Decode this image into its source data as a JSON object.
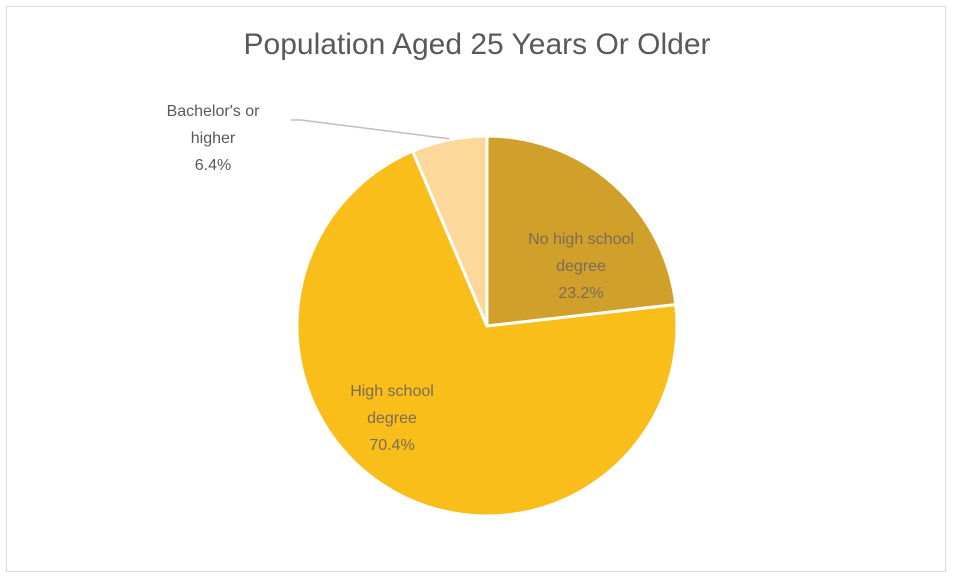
{
  "chart_data": {
    "type": "pie",
    "title": "Population Aged 25 Years Or Older",
    "slices": [
      {
        "label_lines": [
          "No high school",
          "degree"
        ],
        "value_label": "23.2%",
        "value": 23.2,
        "color": "#d0a02a"
      },
      {
        "label_lines": [
          "High school",
          "degree"
        ],
        "value_label": "70.4%",
        "value": 70.4,
        "color": "#f9be19"
      },
      {
        "label_lines": [
          "Bachelor's or",
          "higher"
        ],
        "value_label": "6.4%",
        "value": 6.4,
        "color": "#fdd89b"
      }
    ],
    "legend": "none"
  }
}
